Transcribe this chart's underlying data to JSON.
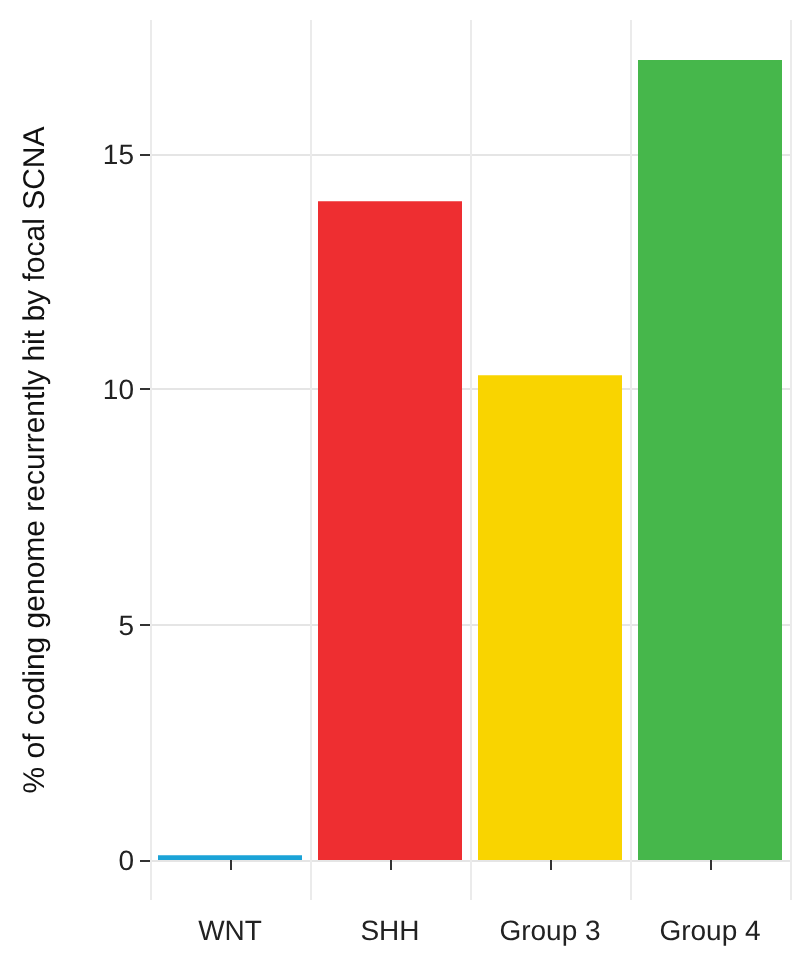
{
  "chart_data": {
    "type": "bar",
    "ylabel": "% of coding genome recurrently hit by focal SCNA",
    "categories": [
      "WNT",
      "SHH",
      "Group 3",
      "Group 4"
    ],
    "values": [
      0.1,
      14.0,
      10.3,
      17.0
    ],
    "colors": [
      "#1ba3d7",
      "#ee2e31",
      "#f9d400",
      "#46b74b"
    ],
    "ylim": [
      -0.85,
      17.85
    ],
    "yticks": [
      0,
      5,
      10,
      15
    ],
    "grid": true
  }
}
